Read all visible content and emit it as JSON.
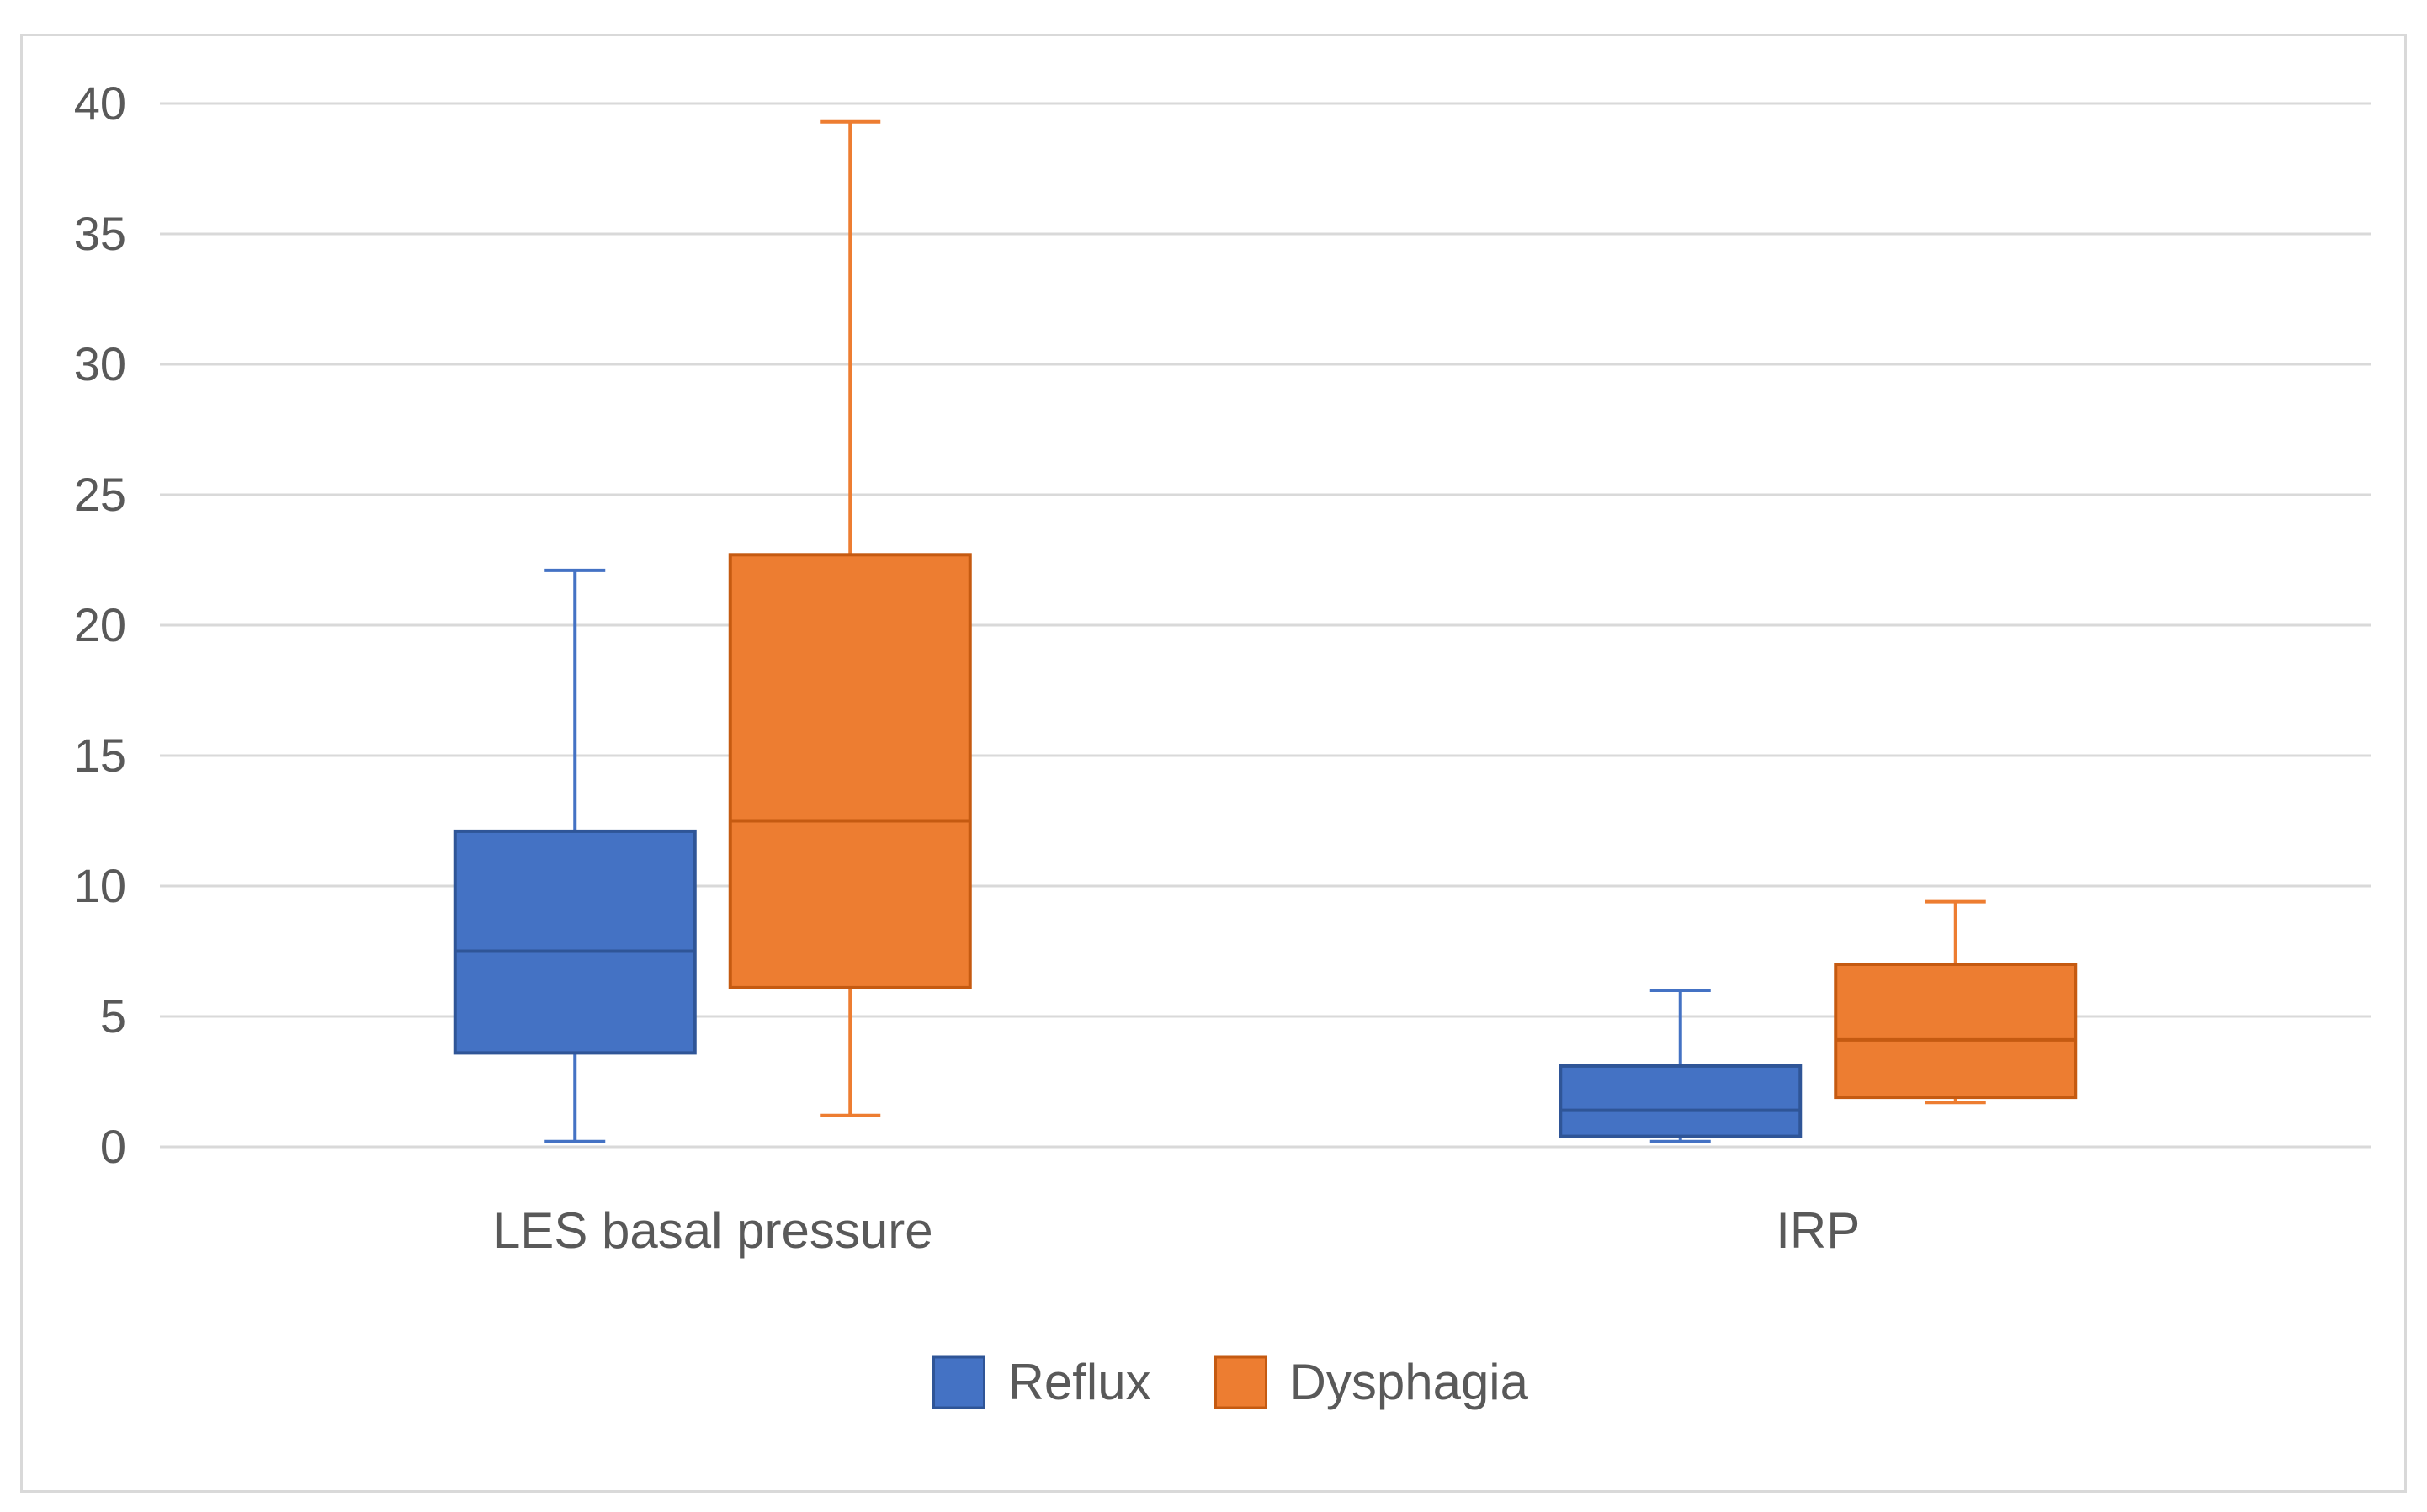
{
  "chart_data": {
    "type": "boxplot",
    "title": "",
    "xlabel": "",
    "ylabel": "",
    "ylim": [
      0,
      40
    ],
    "yticks": [
      0,
      5,
      10,
      15,
      20,
      25,
      30,
      35,
      40
    ],
    "grid": true,
    "legend_position": "bottom-center",
    "categories": [
      "LES basal pressure",
      "IRP"
    ],
    "series": [
      {
        "name": "Reflux",
        "color": "#4472c4",
        "border": "#2f5597",
        "boxes": [
          {
            "min": 0.2,
            "q1": 3.6,
            "median": 7.5,
            "q3": 12.1,
            "max": 22.1
          },
          {
            "min": 0.2,
            "q1": 0.4,
            "median": 1.4,
            "q3": 3.1,
            "max": 6.0
          }
        ]
      },
      {
        "name": "Dysphagia",
        "color": "#ed7d31",
        "border": "#c55a11",
        "boxes": [
          {
            "min": 1.2,
            "q1": 6.1,
            "median": 12.5,
            "q3": 22.7,
            "max": 39.3
          },
          {
            "min": 1.7,
            "q1": 1.9,
            "median": 4.1,
            "q3": 7.0,
            "max": 9.4
          }
        ]
      }
    ]
  }
}
